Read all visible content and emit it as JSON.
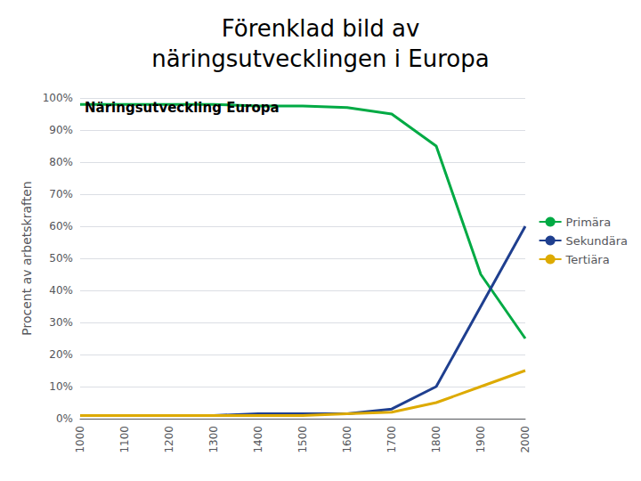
{
  "chart_data": {
    "type": "line",
    "title": "Förenklad bild av\nnäringsutvecklingen i Europa",
    "annotations": [
      {
        "text": "Näringsutveckling Europa",
        "x": 1010,
        "y": 0.99
      }
    ],
    "ylabel": "Procent av arbetskraften",
    "x": [
      1000,
      1100,
      1200,
      1300,
      1400,
      1500,
      1600,
      1700,
      1800,
      1900,
      2000
    ],
    "series": [
      {
        "name": "Primära",
        "color": "#00aa44",
        "values": [
          0.98,
          0.98,
          0.98,
          0.98,
          0.975,
          0.975,
          0.97,
          0.95,
          0.85,
          0.45,
          0.25
        ]
      },
      {
        "name": "Sekundära",
        "color": "#1f3f8f",
        "values": [
          0.01,
          0.01,
          0.01,
          0.01,
          0.015,
          0.015,
          0.015,
          0.03,
          0.1,
          0.35,
          0.6
        ]
      },
      {
        "name": "Tertiära",
        "color": "#ddaa00",
        "values": [
          0.01,
          0.01,
          0.01,
          0.01,
          0.01,
          0.01,
          0.015,
          0.02,
          0.05,
          0.1,
          0.15
        ]
      }
    ],
    "xlim": [
      1000,
      2000
    ],
    "xticks": [
      1000,
      1100,
      1200,
      1300,
      1400,
      1500,
      1600,
      1700,
      1800,
      1900,
      2000
    ],
    "ylim": [
      0,
      1.0
    ],
    "yticks": [
      {
        "value": 0.0,
        "label": "0%"
      },
      {
        "value": 0.1,
        "label": "10%"
      },
      {
        "value": 0.2,
        "label": "20%"
      },
      {
        "value": 0.3,
        "label": "30%"
      },
      {
        "value": 0.4,
        "label": "40%"
      },
      {
        "value": 0.5,
        "label": "50%"
      },
      {
        "value": 0.6,
        "label": "60%"
      },
      {
        "value": 0.7,
        "label": "70%"
      },
      {
        "value": 0.8,
        "label": "80%"
      },
      {
        "value": 0.9,
        "label": "90%"
      },
      {
        "value": 1.0,
        "label": "100%"
      }
    ],
    "grid": true,
    "legend": "right"
  }
}
